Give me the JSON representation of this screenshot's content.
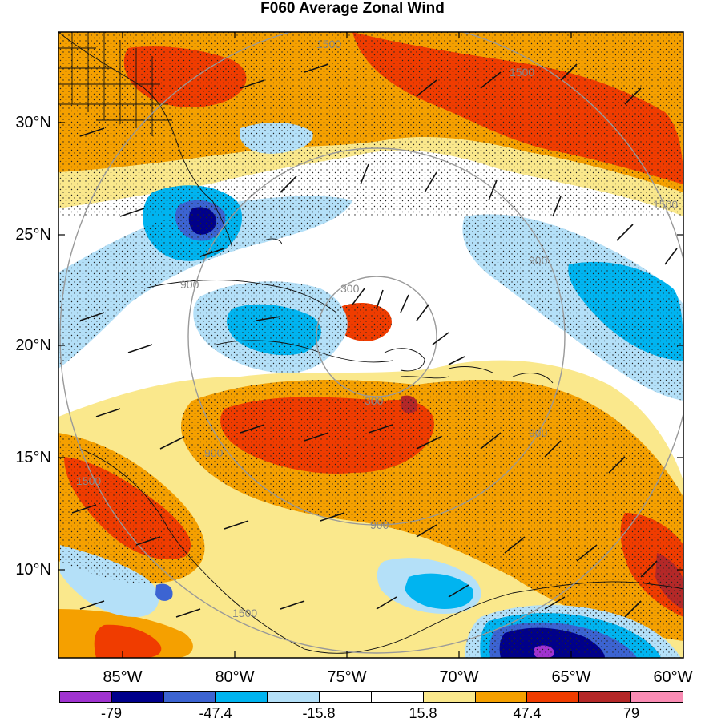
{
  "title": "F060 Average Zonal Wind",
  "latitude_labels": [
    "30°N",
    "25°N",
    "20°N",
    "15°N",
    "10°N"
  ],
  "longitude_labels": [
    "85°W",
    "80°W",
    "75°W",
    "70°W",
    "65°W",
    "60°W"
  ],
  "range_ring_labels": [
    "300",
    "300",
    "900",
    "900",
    "900",
    "900",
    "900",
    "1500",
    "1500",
    "1500",
    "1500",
    "1500"
  ],
  "colorbar": {
    "labels": [
      "-79",
      "-47.4",
      "-15.8",
      "15.8",
      "47.4",
      "79"
    ],
    "colors": [
      "#a033d0",
      "#00008b",
      "#3c64d2",
      "#00b4f0",
      "#b4e0f8",
      "#ffffff",
      "#ffffff",
      "#fae88c",
      "#f5a000",
      "#f03c00",
      "#b42828",
      "#fa8cb4"
    ]
  },
  "map_colors": {
    "deep_negative": "#3c64d2",
    "strong_negative": "#00b4f0",
    "weak_negative": "#b4e0f8",
    "weak_positive": "#fae88c",
    "moderate_positive": "#f5a000",
    "strong_positive": "#f03c00",
    "very_strong_positive": "#b42828",
    "extreme_negative": "#00008b",
    "extreme_negative_max": "#a033d0"
  }
}
